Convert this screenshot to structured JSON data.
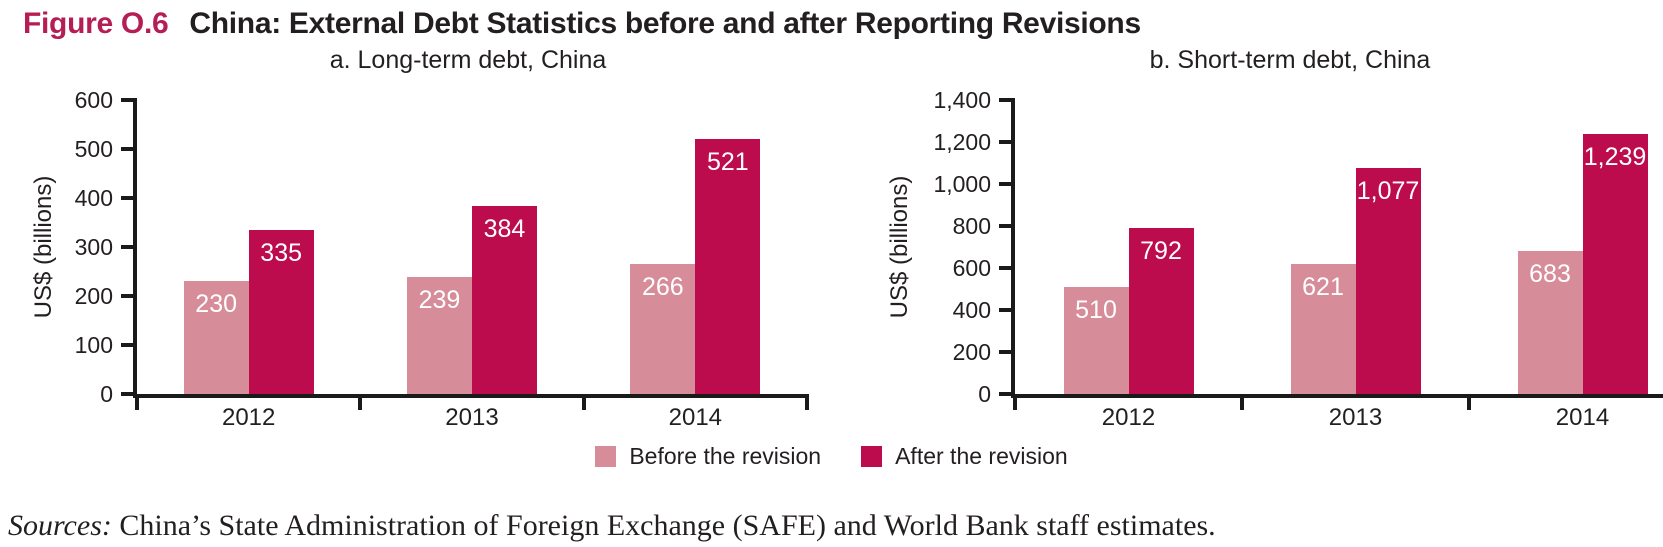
{
  "header": {
    "figure_label": "Figure O.6",
    "title": "China: External Debt Statistics before and after Reporting Revisions"
  },
  "colors": {
    "before": "#d68d99",
    "after": "#bc0c4e",
    "figure_label_accent": "#b51e55",
    "axis": "#1a1a1a",
    "bar_value_text": "#ffffff"
  },
  "legend": {
    "items": [
      {
        "label": "Before the revision",
        "color_key": "before"
      },
      {
        "label": "After the revision",
        "color_key": "after"
      }
    ]
  },
  "sources": {
    "prefix": "Sources:",
    "text": "China’s State Administration of Foreign Exchange (SAFE) and World Bank staff estimates."
  },
  "chart_data": [
    {
      "type": "bar",
      "title": "a. Long-term debt, China",
      "xlabel": "",
      "ylabel": "US$ (billions)",
      "ylim": [
        0,
        600
      ],
      "grid": false,
      "legend_position": "shared-bottom",
      "yticks": [
        {
          "value": 0,
          "label": "0"
        },
        {
          "value": 100,
          "label": "100"
        },
        {
          "value": 200,
          "label": "200"
        },
        {
          "value": 300,
          "label": "300"
        },
        {
          "value": 400,
          "label": "400"
        },
        {
          "value": 500,
          "label": "500"
        },
        {
          "value": 600,
          "label": "600"
        }
      ],
      "categories": [
        "2012",
        "2013",
        "2014"
      ],
      "series": [
        {
          "name": "Before the revision",
          "color_key": "before",
          "values": [
            230,
            239,
            266
          ],
          "labels": [
            "230",
            "239",
            "266"
          ]
        },
        {
          "name": "After the revision",
          "color_key": "after",
          "values": [
            335,
            384,
            521
          ],
          "labels": [
            "335",
            "384",
            "521"
          ]
        }
      ]
    },
    {
      "type": "bar",
      "title": "b. Short-term debt, China",
      "xlabel": "",
      "ylabel": "US$ (billions)",
      "ylim": [
        0,
        1400
      ],
      "grid": false,
      "legend_position": "shared-bottom",
      "yticks": [
        {
          "value": 0,
          "label": "0"
        },
        {
          "value": 200,
          "label": "200"
        },
        {
          "value": 400,
          "label": "400"
        },
        {
          "value": 600,
          "label": "600"
        },
        {
          "value": 800,
          "label": "800"
        },
        {
          "value": 1000,
          "label": "1,000"
        },
        {
          "value": 1200,
          "label": "1,200"
        },
        {
          "value": 1400,
          "label": "1,400"
        }
      ],
      "categories": [
        "2012",
        "2013",
        "2014"
      ],
      "series": [
        {
          "name": "Before the revision",
          "color_key": "before",
          "values": [
            510,
            621,
            683
          ],
          "labels": [
            "510",
            "621",
            "683"
          ]
        },
        {
          "name": "After the revision",
          "color_key": "after",
          "values": [
            792,
            1077,
            1239
          ],
          "labels": [
            "792",
            "1,077",
            "1,239"
          ]
        }
      ]
    }
  ]
}
